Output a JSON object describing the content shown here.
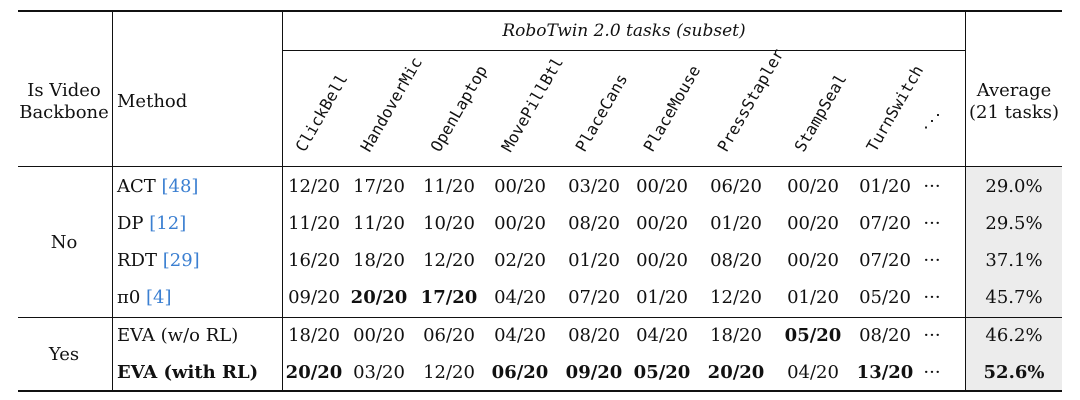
{
  "header": {
    "is_video_backbone": "Is Video\nBackbone",
    "method": "Method",
    "group_title": "RoboTwin 2.0 tasks (subset)",
    "average_label": "Average\n(21 tasks)",
    "tasks": [
      "ClickBell",
      "HandoverMic",
      "OpenLaptop",
      "MovePillBtl",
      "PlaceCans",
      "PlaceMouse",
      "PressStapler",
      "StampSeal",
      "TurnSwitch"
    ],
    "ellipsis": "⋰"
  },
  "groups": [
    {
      "label": "No"
    },
    {
      "label": "Yes"
    }
  ],
  "rows": [
    {
      "method": "ACT ",
      "cite": "[48]",
      "values": [
        "12/20",
        "17/20",
        "11/20",
        "00/20",
        "03/20",
        "00/20",
        "06/20",
        "00/20",
        "01/20"
      ],
      "dots": "···",
      "average": "29.0%"
    },
    {
      "method": "DP ",
      "cite": "[12]",
      "values": [
        "11/20",
        "11/20",
        "10/20",
        "00/20",
        "08/20",
        "00/20",
        "01/20",
        "00/20",
        "07/20"
      ],
      "dots": "···",
      "average": "29.5%"
    },
    {
      "method": "RDT ",
      "cite": "[29]",
      "values": [
        "16/20",
        "18/20",
        "12/20",
        "02/20",
        "01/20",
        "00/20",
        "08/20",
        "00/20",
        "07/20"
      ],
      "dots": "···",
      "average": "37.1%"
    },
    {
      "method": "π0 ",
      "cite": "[4]",
      "values": [
        "09/20",
        "20/20",
        "17/20",
        "04/20",
        "07/20",
        "01/20",
        "12/20",
        "01/20",
        "05/20"
      ],
      "dots": "···",
      "average": "45.7%"
    },
    {
      "method": "EVA (w/o RL)",
      "cite": "",
      "values": [
        "18/20",
        "00/20",
        "06/20",
        "04/20",
        "08/20",
        "04/20",
        "18/20",
        "05/20",
        "08/20"
      ],
      "dots": "···",
      "average": "46.2%"
    },
    {
      "method": "EVA (with RL)",
      "cite": "",
      "values": [
        "20/20",
        "03/20",
        "12/20",
        "06/20",
        "09/20",
        "05/20",
        "20/20",
        "04/20",
        "13/20"
      ],
      "dots": "···",
      "average": "52.6%"
    }
  ]
}
